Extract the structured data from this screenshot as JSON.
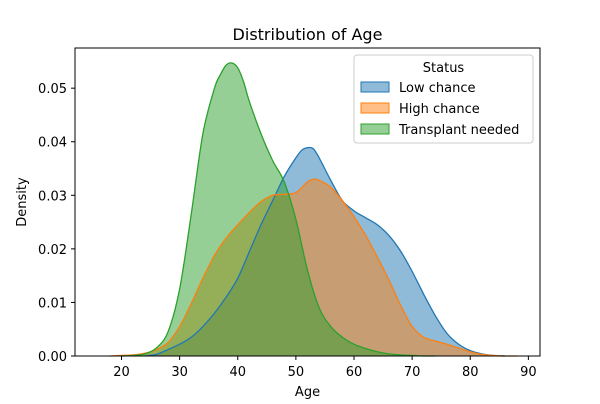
{
  "chart_data": {
    "type": "area",
    "title": "Distribution of Age",
    "xlabel": "Age",
    "ylabel": "Density",
    "xlim": [
      12,
      92
    ],
    "ylim": [
      0,
      0.0575
    ],
    "xticks": [
      20,
      30,
      40,
      50,
      60,
      70,
      80,
      90
    ],
    "yticks": [
      0.0,
      0.01,
      0.02,
      0.03,
      0.04,
      0.05
    ],
    "ytick_labels": [
      "0.00",
      "0.01",
      "0.02",
      "0.03",
      "0.04",
      "0.05"
    ],
    "grid": false,
    "legend": {
      "title": "Status",
      "placement": "upper right"
    },
    "series": [
      {
        "name": "Low chance",
        "color": "#1f77b4",
        "x": [
          24,
          26,
          28,
          30,
          32,
          34,
          36,
          38,
          40,
          42,
          44,
          46,
          48,
          50,
          51,
          52,
          53,
          54,
          56,
          58,
          60,
          62,
          64,
          66,
          68,
          70,
          72,
          74,
          76,
          78,
          80,
          82,
          84,
          86
        ],
        "y": [
          0.0,
          0.0003,
          0.0012,
          0.0022,
          0.0035,
          0.0055,
          0.008,
          0.011,
          0.0145,
          0.0195,
          0.0245,
          0.029,
          0.0335,
          0.037,
          0.0384,
          0.0389,
          0.0387,
          0.037,
          0.0328,
          0.029,
          0.0271,
          0.0258,
          0.0245,
          0.0225,
          0.0196,
          0.0158,
          0.0115,
          0.0075,
          0.0042,
          0.0022,
          0.001,
          0.0004,
          0.0001,
          0.0
        ]
      },
      {
        "name": "High chance",
        "color": "#ff7f0e",
        "x": [
          18,
          20,
          22,
          24,
          26,
          28,
          30,
          32,
          34,
          36,
          38,
          40,
          42,
          44,
          46,
          48,
          50,
          52,
          53,
          54,
          56,
          58,
          60,
          62,
          64,
          66,
          68,
          70,
          72,
          74,
          76,
          78,
          80,
          82,
          84,
          86,
          88
        ],
        "y": [
          0.0,
          0.0001,
          0.0002,
          0.0005,
          0.0012,
          0.0025,
          0.0055,
          0.0098,
          0.0145,
          0.0188,
          0.022,
          0.0245,
          0.0268,
          0.0288,
          0.03,
          0.0302,
          0.0305,
          0.0325,
          0.033,
          0.0328,
          0.0315,
          0.029,
          0.026,
          0.0225,
          0.0185,
          0.0142,
          0.0095,
          0.0055,
          0.0035,
          0.0028,
          0.0022,
          0.0015,
          0.0008,
          0.0003,
          0.0001,
          0.0,
          0.0
        ]
      },
      {
        "name": "Transplant needed",
        "color": "#2ca02c",
        "x": [
          20,
          22,
          24,
          26,
          28,
          30,
          32,
          34,
          36,
          37,
          38,
          39,
          40,
          41,
          42,
          44,
          46,
          48,
          50,
          52,
          54,
          56,
          58,
          60,
          62,
          64,
          66,
          68,
          70,
          72,
          74
        ],
        "y": [
          0.0,
          0.0001,
          0.0004,
          0.0015,
          0.0045,
          0.0125,
          0.0265,
          0.0415,
          0.05,
          0.0525,
          0.0543,
          0.0547,
          0.0538,
          0.0512,
          0.0475,
          0.0415,
          0.0365,
          0.0325,
          0.0255,
          0.016,
          0.009,
          0.0055,
          0.0035,
          0.0022,
          0.0014,
          0.0008,
          0.0004,
          0.0002,
          0.0001,
          0.0,
          0.0
        ]
      }
    ]
  }
}
